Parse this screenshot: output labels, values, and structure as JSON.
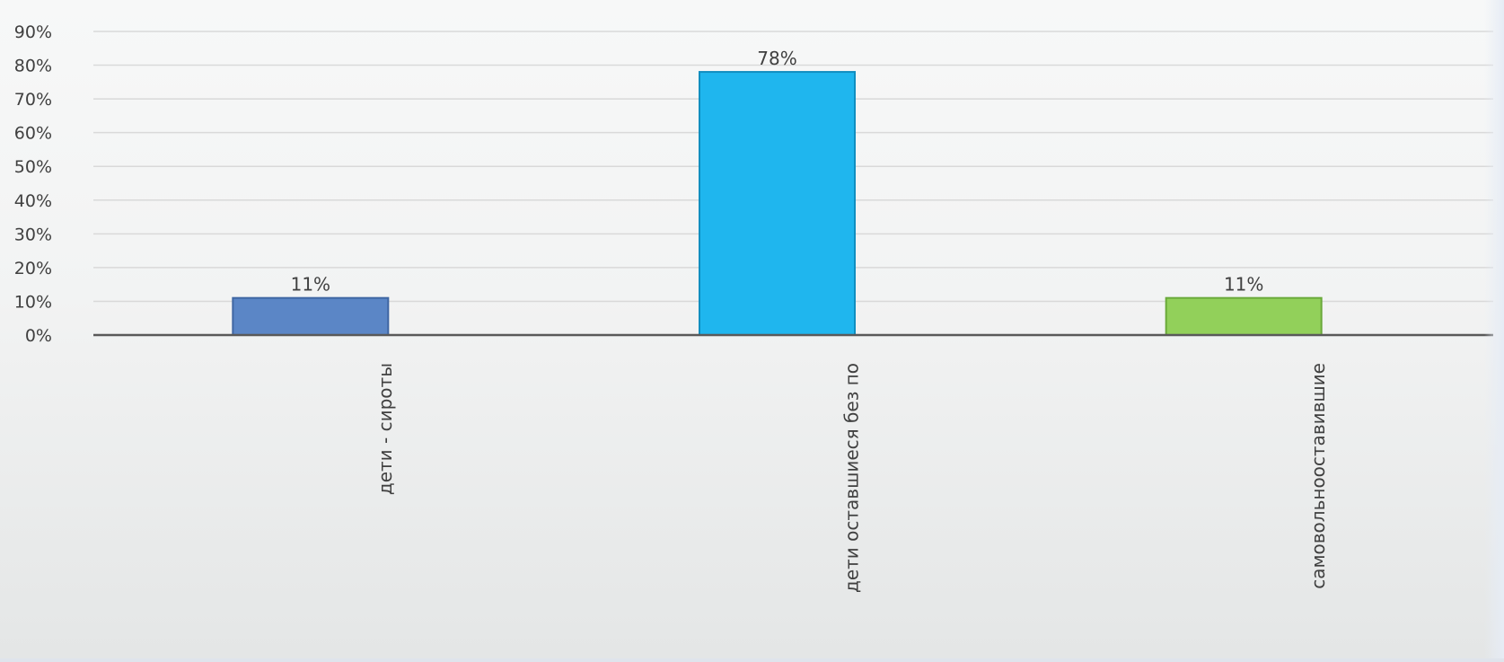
{
  "chart_data": {
    "type": "bar",
    "categories": [
      "дети - сироты",
      "дети оставшиеся без по",
      "самовольнооставившие"
    ],
    "values": [
      11,
      78,
      11
    ],
    "data_labels": [
      "11%",
      "78%",
      "11%"
    ],
    "ylim": [
      0,
      90
    ],
    "yticks": [
      0,
      10,
      20,
      30,
      40,
      50,
      60,
      70,
      80,
      90
    ],
    "ytick_labels": [
      "0%",
      "10%",
      "20%",
      "30%",
      "40%",
      "50%",
      "60%",
      "70%",
      "80%",
      "90%"
    ],
    "grid": true,
    "legend": "none",
    "bar_colors": [
      "#5b86c6",
      "#1fb6ee",
      "#92d05a"
    ],
    "bar_border_colors": [
      "#3f66a3",
      "#0f8ec0",
      "#6aa93a"
    ],
    "gridline_color": "#d9d9d9",
    "axis_color": "#595959",
    "label_color": "#404040"
  }
}
